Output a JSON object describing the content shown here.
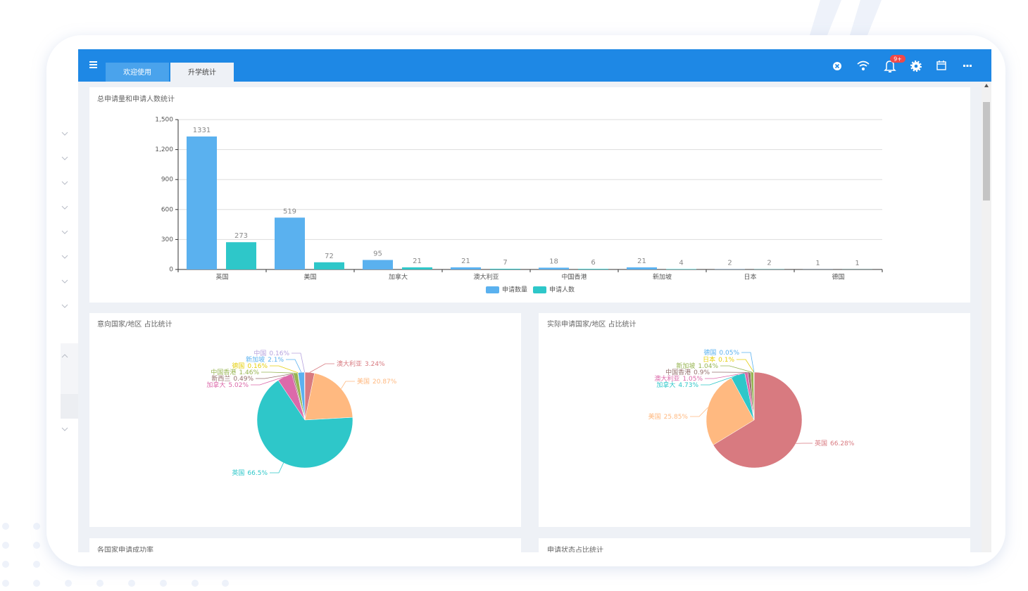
{
  "tabs": [
    "欢迎使用",
    "升学统计"
  ],
  "notification_badge": "9+",
  "chart_data": [
    {
      "type": "bar",
      "title": "总申请量和申请人数统计",
      "categories": [
        "英国",
        "美国",
        "加拿大",
        "澳大利亚",
        "中国香港",
        "新加坡",
        "日本",
        "德国"
      ],
      "series": [
        {
          "name": "申请数量",
          "color": "#5ab1ef",
          "values": [
            1331,
            519,
            95,
            21,
            18,
            21,
            2,
            1
          ]
        },
        {
          "name": "申请人数",
          "color": "#2ec7c9",
          "values": [
            273,
            72,
            21,
            7,
            6,
            4,
            2,
            1
          ]
        }
      ],
      "ylim": [
        0,
        1500
      ],
      "yticks": [
        0,
        300,
        600,
        900,
        {
          "value": 1200,
          "label": "1,200"
        },
        {
          "value": 1500,
          "label": "1,500"
        }
      ],
      "grid": true,
      "legend": "bottom"
    },
    {
      "type": "pie",
      "title": "意向国家/地区 占比统计",
      "categories": [
        "澳大利亚",
        "美国",
        "英国",
        "加拿大",
        "新西兰",
        "中国香港",
        "德国",
        "新加坡",
        "中国"
      ],
      "values": [
        3.24,
        20.87,
        66.5,
        5.02,
        0.49,
        1.46,
        0.16,
        2.1,
        0.16
      ],
      "value_labels": [
        "3.24%",
        "20.87%",
        "66.5%",
        "5.02%",
        "0.49%",
        "1.46%",
        "0.16%",
        "2.1%",
        "0.16%"
      ],
      "colors": [
        "#d87a80",
        "#ffb980",
        "#2ec7c9",
        "#dc69aa",
        "#95706d",
        "#97b552",
        "#e5cf0d",
        "#5ab1ef",
        "#b6a2de"
      ]
    },
    {
      "type": "pie",
      "title": "实际申请国家/地区 占比统计",
      "categories": [
        "英国",
        "美国",
        "加拿大",
        "澳大利亚",
        "中国香港",
        "新加坡",
        "日本",
        "德国"
      ],
      "values": [
        66.28,
        25.85,
        4.73,
        1.05,
        0.9,
        1.04,
        0.1,
        0.05
      ],
      "value_labels": [
        "66.28%",
        "25.85%",
        "4.73%",
        "1.05%",
        "0.9%",
        "1.04%",
        "0.1%",
        "0.05%"
      ],
      "colors": [
        "#d87a80",
        "#ffb980",
        "#2ec7c9",
        "#dc69aa",
        "#95706d",
        "#97b552",
        "#e5cf0d",
        "#5ab1ef"
      ]
    }
  ],
  "more_panels": [
    "各国家申请成功率",
    "申请状态占比统计"
  ]
}
